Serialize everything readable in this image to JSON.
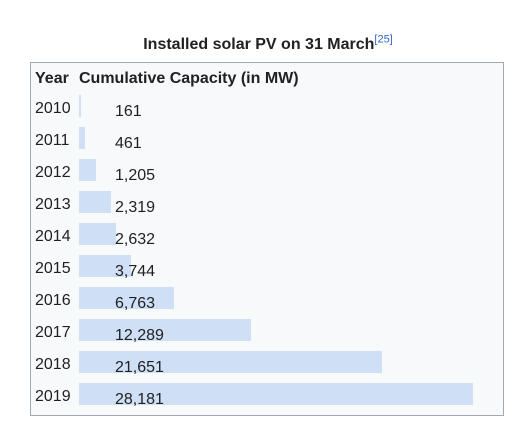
{
  "caption": {
    "text": "Installed solar PV on 31 March",
    "ref": "[25]"
  },
  "table": {
    "col_year": "Year",
    "col_capacity": "Cumulative Capacity (in MW)"
  },
  "chart_data": {
    "type": "bar",
    "orientation": "horizontal",
    "title": "Installed solar PV on 31 March",
    "xlabel": "Cumulative Capacity (in MW)",
    "ylabel": "Year",
    "categories": [
      "2010",
      "2011",
      "2012",
      "2013",
      "2014",
      "2015",
      "2016",
      "2017",
      "2018",
      "2019"
    ],
    "values": [
      161,
      461,
      1205,
      2319,
      2632,
      3744,
      6763,
      12289,
      21651,
      28181
    ],
    "value_labels": [
      "161",
      "461",
      "1,205",
      "2,319",
      "2,632",
      "3,744",
      "6,763",
      "12,289",
      "21,651",
      "28,181"
    ],
    "xlim": [
      0,
      28181
    ],
    "bar_color": "#cfdff5"
  }
}
